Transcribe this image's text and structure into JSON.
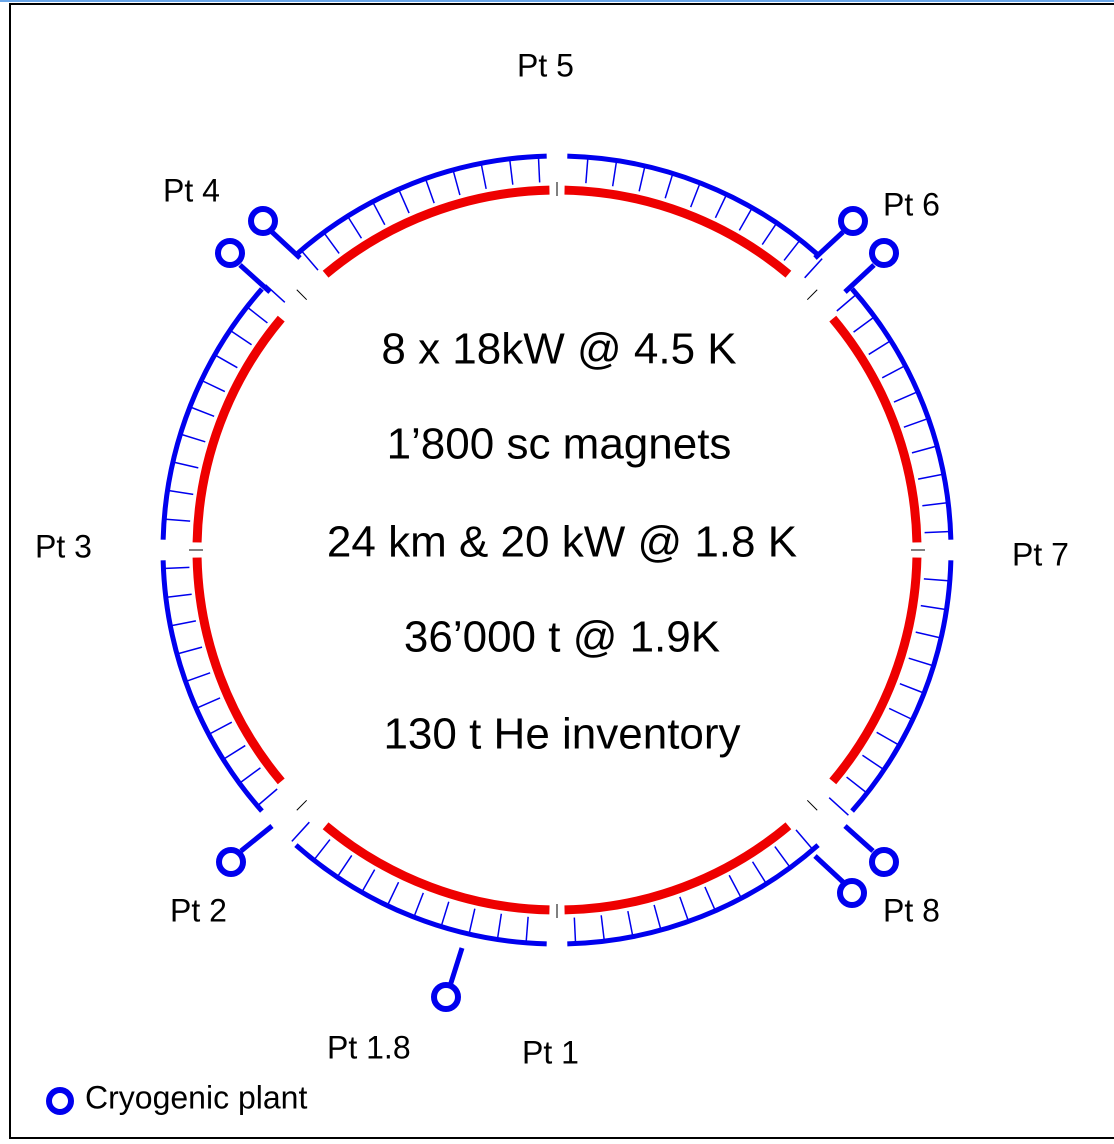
{
  "points": [
    "Pt 5",
    "Pt 4",
    "Pt 6",
    "Pt 3",
    "Pt 7",
    "Pt 2",
    "Pt 8",
    "Pt 1.8",
    "Pt 1"
  ],
  "center_text": [
    "8 x 18kW @ 4.5 K",
    "1’800 sc magnets",
    "24 km & 20 kW @ 1.8 K",
    "36’000 t @ 1.9K",
    "130 t He inventory"
  ],
  "legend": {
    "label": "Cryogenic plant"
  }
}
